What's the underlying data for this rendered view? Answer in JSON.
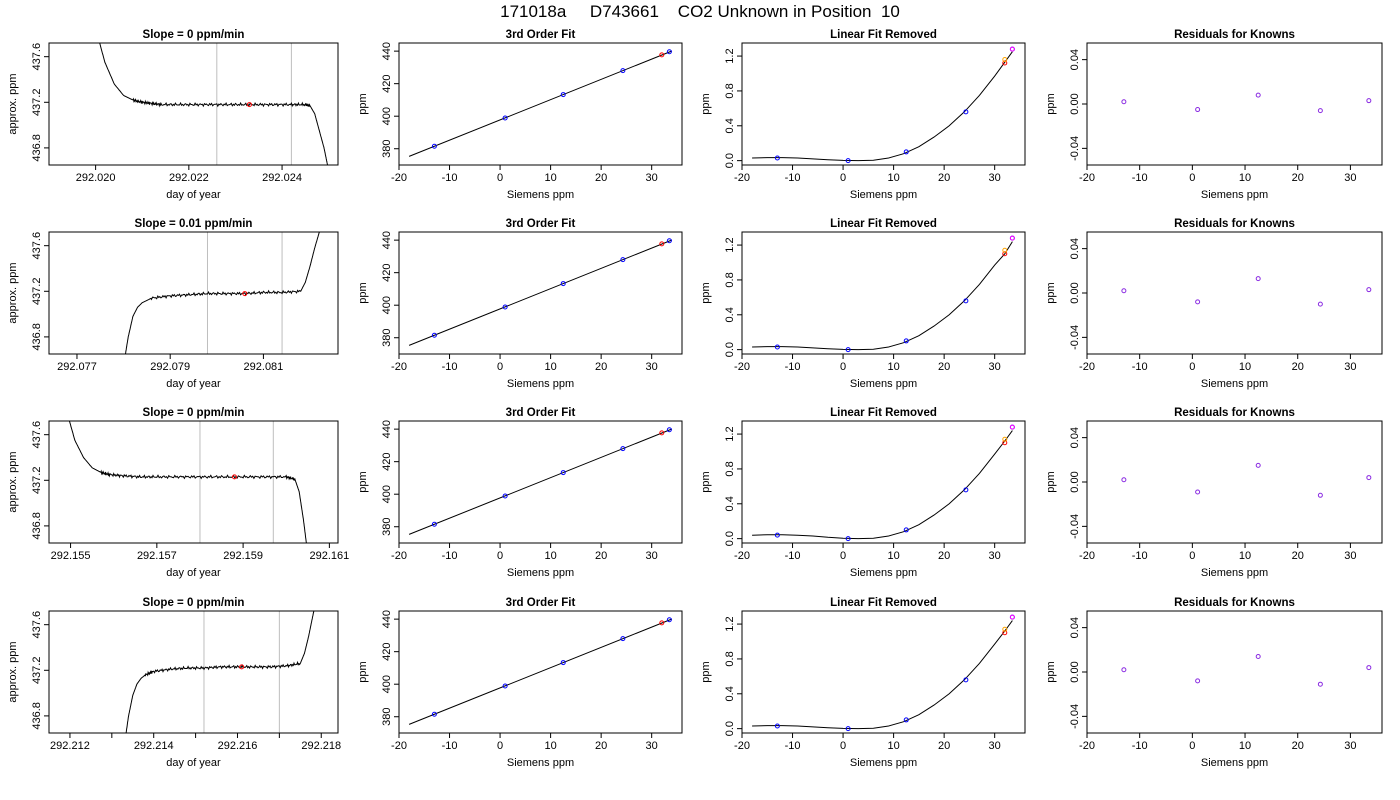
{
  "main_title": "171018a     D743661    CO2 Unknown in Position  10",
  "colors": {
    "axis": "#000000",
    "line": "#000000",
    "vline": "#bebebe",
    "known": "#0000ff",
    "residual": "#8a2be2",
    "unknown": "#ff0000",
    "unknown_alt": "#ffa500",
    "hollow": "#ff00ff"
  },
  "chart_data": [
    {
      "type": "line",
      "panel": "timeseries",
      "row": 1,
      "title": "Slope =  0  ppm/min",
      "xlabel": "day of year",
      "ylabel": "approx. ppm",
      "xlim": [
        292.019,
        292.0252
      ],
      "ylim": [
        436.65,
        437.72
      ],
      "xticks": [
        292.02,
        292.022,
        292.024
      ],
      "xtick_labels": [
        "292.020",
        "292.022",
        "292.024"
      ],
      "yticks": [
        436.8,
        437.2,
        437.6
      ],
      "ytick_labels": [
        "436.8",
        "437.2",
        "437.6"
      ],
      "vlines": [
        292.0226,
        292.0242
      ],
      "marker": {
        "x": 292.0233,
        "y": 437.18
      },
      "x": [
        292.02,
        292.0202,
        292.0204,
        292.0206,
        292.0208,
        292.021,
        292.0212,
        292.0214,
        292.0218,
        292.0222,
        292.0226,
        292.023,
        292.0234,
        292.0238,
        292.0242,
        292.0245,
        292.0246,
        292.0247,
        292.0248,
        292.0249,
        292.02495,
        292.025
      ],
      "y": [
        437.85,
        437.55,
        437.36,
        437.26,
        437.22,
        437.2,
        437.19,
        437.18,
        437.18,
        437.18,
        437.18,
        437.18,
        437.18,
        437.18,
        437.18,
        437.18,
        437.17,
        437.1,
        436.95,
        436.8,
        436.7,
        436.6
      ]
    },
    {
      "type": "scatter",
      "panel": "fit",
      "row": 1,
      "title": "3rd Order Fit",
      "xlabel": "Siemens ppm",
      "ylabel": "ppm",
      "xlim": [
        -20,
        36
      ],
      "ylim": [
        370,
        445
      ],
      "xticks": [
        -20,
        -10,
        0,
        10,
        20,
        30
      ],
      "yticks": [
        380,
        400,
        420,
        440
      ],
      "curve_x": [
        -18,
        34
      ],
      "curve_y": [
        375.3,
        440.1
      ],
      "known_x": [
        -13,
        1,
        12.5,
        24.3,
        33.5
      ],
      "known_y": [
        381.5,
        398.9,
        413.3,
        428.0,
        439.6
      ],
      "unknown": {
        "x": 32,
        "y": 437.7
      }
    },
    {
      "type": "scatter",
      "panel": "linear_removed",
      "row": 1,
      "title": "Linear Fit Removed",
      "xlabel": "Siemens ppm",
      "ylabel": "ppm",
      "xlim": [
        -20,
        36
      ],
      "ylim": [
        -0.05,
        1.35
      ],
      "xticks": [
        -20,
        -10,
        0,
        10,
        20,
        30
      ],
      "yticks": [
        0.0,
        0.4,
        0.8,
        1.2
      ],
      "ytick_labels": [
        "0.0",
        "0.4",
        "0.8",
        "1.2"
      ],
      "curve_x": [
        -18,
        -15,
        -12,
        -9,
        -6,
        -3,
        0,
        3,
        6,
        9,
        12,
        15,
        18,
        21,
        24,
        27,
        30,
        32,
        33.5
      ],
      "curve_y": [
        0.03,
        0.035,
        0.035,
        0.03,
        0.02,
        0.01,
        0.003,
        0.0,
        0.005,
        0.03,
        0.08,
        0.16,
        0.27,
        0.4,
        0.56,
        0.75,
        0.97,
        1.13,
        1.25
      ],
      "known_x": [
        -13,
        1,
        12.5,
        24.3,
        33.5
      ],
      "known_y": [
        0.03,
        0.0,
        0.1,
        0.56,
        1.28
      ],
      "unknown": {
        "x": 32,
        "y": 1.12
      }
    },
    {
      "type": "scatter",
      "panel": "residuals",
      "row": 1,
      "title": "Residuals for Knowns",
      "xlabel": "Siemens ppm",
      "ylabel": "ppm",
      "xlim": [
        -20,
        36
      ],
      "ylim": [
        -0.055,
        0.055
      ],
      "xticks": [
        -20,
        -10,
        0,
        10,
        20,
        30
      ],
      "yticks": [
        -0.04,
        0.0,
        0.04
      ],
      "ytick_labels": [
        "-0.04",
        "0.00",
        "0.04"
      ],
      "x": [
        -13,
        1,
        12.5,
        24.3,
        33.5
      ],
      "y": [
        0.002,
        -0.005,
        0.008,
        -0.006,
        0.003
      ]
    },
    {
      "type": "line",
      "panel": "timeseries",
      "row": 2,
      "title": "Slope =  0.01  ppm/min",
      "xlabel": "day of year",
      "ylabel": "approx. ppm",
      "xlim": [
        292.0764,
        292.0826
      ],
      "ylim": [
        436.65,
        437.72
      ],
      "xticks": [
        292.077,
        292.079,
        292.081
      ],
      "xtick_labels": [
        "292.077",
        "292.079",
        "292.081"
      ],
      "yticks": [
        436.8,
        437.2,
        437.6
      ],
      "ytick_labels": [
        "436.8",
        "437.2",
        "437.6"
      ],
      "vlines": [
        292.0798,
        292.0814
      ],
      "marker": {
        "x": 292.0806,
        "y": 437.18
      },
      "x": [
        292.078,
        292.0781,
        292.0782,
        292.0783,
        292.0784,
        292.0786,
        292.079,
        292.0794,
        292.0798,
        292.0802,
        292.0806,
        292.081,
        292.0814,
        292.0818,
        292.0819,
        292.082,
        292.0821,
        292.0822,
        292.0823
      ],
      "y": [
        436.55,
        436.8,
        436.98,
        437.06,
        437.1,
        437.14,
        437.16,
        437.17,
        437.18,
        437.18,
        437.18,
        437.19,
        437.19,
        437.2,
        437.28,
        437.42,
        437.58,
        437.72,
        437.8
      ]
    },
    {
      "type": "scatter",
      "panel": "fit",
      "row": 2,
      "title": "3rd Order Fit",
      "xlabel": "Siemens ppm",
      "ylabel": "ppm",
      "xlim": [
        -20,
        36
      ],
      "ylim": [
        370,
        445
      ],
      "xticks": [
        -20,
        -10,
        0,
        10,
        20,
        30
      ],
      "yticks": [
        380,
        400,
        420,
        440
      ],
      "curve_x": [
        -18,
        34
      ],
      "curve_y": [
        375.3,
        440.1
      ],
      "known_x": [
        -13,
        1,
        12.5,
        24.3,
        33.5
      ],
      "known_y": [
        381.5,
        398.9,
        413.3,
        428.0,
        439.6
      ],
      "unknown": {
        "x": 32,
        "y": 437.7
      }
    },
    {
      "type": "scatter",
      "panel": "linear_removed",
      "row": 2,
      "title": "Linear Fit Removed",
      "xlabel": "Siemens ppm",
      "ylabel": "ppm",
      "xlim": [
        -20,
        36
      ],
      "ylim": [
        -0.05,
        1.35
      ],
      "xticks": [
        -20,
        -10,
        0,
        10,
        20,
        30
      ],
      "yticks": [
        0.0,
        0.4,
        0.8,
        1.2
      ],
      "ytick_labels": [
        "0.0",
        "0.4",
        "0.8",
        "1.2"
      ],
      "curve_x": [
        -18,
        -15,
        -12,
        -9,
        -6,
        -3,
        0,
        3,
        6,
        9,
        12,
        15,
        18,
        21,
        24,
        27,
        30,
        32,
        33.5
      ],
      "curve_y": [
        0.03,
        0.035,
        0.035,
        0.03,
        0.02,
        0.01,
        0.003,
        0.0,
        0.005,
        0.03,
        0.08,
        0.16,
        0.27,
        0.4,
        0.56,
        0.75,
        0.97,
        1.1,
        1.24
      ],
      "known_x": [
        -13,
        1,
        12.5,
        24.3,
        33.5
      ],
      "known_y": [
        0.03,
        0.0,
        0.1,
        0.56,
        1.28
      ],
      "unknown": {
        "x": 32,
        "y": 1.1
      }
    },
    {
      "type": "scatter",
      "panel": "residuals",
      "row": 2,
      "title": "Residuals for Knowns",
      "xlabel": "Siemens ppm",
      "ylabel": "ppm",
      "xlim": [
        -20,
        36
      ],
      "ylim": [
        -0.055,
        0.055
      ],
      "xticks": [
        -20,
        -10,
        0,
        10,
        20,
        30
      ],
      "yticks": [
        -0.04,
        0.0,
        0.04
      ],
      "ytick_labels": [
        "-0.04",
        "0.00",
        "0.04"
      ],
      "x": [
        -13,
        1,
        12.5,
        24.3,
        33.5
      ],
      "y": [
        0.002,
        -0.008,
        0.013,
        -0.01,
        0.003
      ]
    },
    {
      "type": "line",
      "panel": "timeseries",
      "row": 3,
      "title": "Slope =  0  ppm/min",
      "xlabel": "day of year",
      "ylabel": "approx. ppm",
      "xlim": [
        292.1545,
        292.1612
      ],
      "ylim": [
        436.65,
        437.72
      ],
      "xticks": [
        292.155,
        292.157,
        292.159,
        292.161
      ],
      "xtick_labels": [
        "292.155",
        "292.157",
        "292.159",
        "292.161"
      ],
      "yticks": [
        436.8,
        437.2,
        437.6
      ],
      "ytick_labels": [
        "436.8",
        "437.2",
        "437.6"
      ],
      "vlines": [
        292.158,
        292.1597
      ],
      "marker": {
        "x": 292.1588,
        "y": 437.23
      },
      "x": [
        292.1549,
        292.1551,
        292.1553,
        292.1555,
        292.1557,
        292.1559,
        292.1562,
        292.1566,
        292.157,
        292.1575,
        292.158,
        292.1585,
        292.159,
        292.1595,
        292.16,
        292.1602,
        292.1603,
        292.1604,
        292.1605
      ],
      "y": [
        437.82,
        437.55,
        437.4,
        437.31,
        437.27,
        437.25,
        437.24,
        437.23,
        437.23,
        437.23,
        437.23,
        437.23,
        437.23,
        437.23,
        437.23,
        437.21,
        437.1,
        436.85,
        436.55
      ]
    },
    {
      "type": "scatter",
      "panel": "fit",
      "row": 3,
      "title": "3rd Order Fit",
      "xlabel": "Siemens ppm",
      "ylabel": "ppm",
      "xlim": [
        -20,
        36
      ],
      "ylim": [
        370,
        445
      ],
      "xticks": [
        -20,
        -10,
        0,
        10,
        20,
        30
      ],
      "yticks": [
        380,
        400,
        420,
        440
      ],
      "curve_x": [
        -18,
        34
      ],
      "curve_y": [
        375.3,
        440.1
      ],
      "known_x": [
        -13,
        1,
        12.5,
        24.3,
        33.5
      ],
      "known_y": [
        381.5,
        398.9,
        413.3,
        428.0,
        439.6
      ],
      "unknown": {
        "x": 32,
        "y": 437.7
      }
    },
    {
      "type": "scatter",
      "panel": "linear_removed",
      "row": 3,
      "title": "Linear Fit Removed",
      "xlabel": "Siemens ppm",
      "ylabel": "ppm",
      "xlim": [
        -20,
        36
      ],
      "ylim": [
        -0.05,
        1.35
      ],
      "xticks": [
        -20,
        -10,
        0,
        10,
        20,
        30
      ],
      "yticks": [
        0.0,
        0.4,
        0.8,
        1.2
      ],
      "ytick_labels": [
        "0.0",
        "0.4",
        "0.8",
        "1.2"
      ],
      "curve_x": [
        -18,
        -15,
        -12,
        -9,
        -6,
        -3,
        0,
        3,
        6,
        9,
        12,
        15,
        18,
        21,
        24,
        27,
        30,
        32,
        33.5
      ],
      "curve_y": [
        0.04,
        0.045,
        0.045,
        0.04,
        0.03,
        0.015,
        0.005,
        0.0,
        0.005,
        0.03,
        0.08,
        0.16,
        0.27,
        0.4,
        0.56,
        0.75,
        0.97,
        1.12,
        1.24
      ],
      "known_x": [
        -13,
        1,
        12.5,
        24.3,
        33.5
      ],
      "known_y": [
        0.04,
        0.0,
        0.1,
        0.56,
        1.28
      ],
      "unknown": {
        "x": 32,
        "y": 1.1
      }
    },
    {
      "type": "scatter",
      "panel": "residuals",
      "row": 3,
      "title": "Residuals for Knowns",
      "xlabel": "Siemens ppm",
      "ylabel": "ppm",
      "xlim": [
        -20,
        36
      ],
      "ylim": [
        -0.055,
        0.055
      ],
      "xticks": [
        -20,
        -10,
        0,
        10,
        20,
        30
      ],
      "yticks": [
        -0.04,
        0.0,
        0.04
      ],
      "ytick_labels": [
        "-0.04",
        "0.00",
        "0.04"
      ],
      "x": [
        -13,
        1,
        12.5,
        24.3,
        33.5
      ],
      "y": [
        0.002,
        -0.009,
        0.015,
        -0.012,
        0.004
      ]
    },
    {
      "type": "line",
      "panel": "timeseries",
      "row": 4,
      "title": "Slope =  0  ppm/min",
      "xlabel": "day of year",
      "ylabel": "approx. ppm",
      "xlim": [
        292.2115,
        292.2184
      ],
      "ylim": [
        436.65,
        437.72
      ],
      "xticks": [
        292.212,
        292.213,
        292.214,
        292.215,
        292.216,
        292.217,
        292.218
      ],
      "xtick_labels": [
        "292.212",
        "",
        "292.214",
        "",
        "292.216",
        "",
        "292.218"
      ],
      "yticks": [
        436.8,
        437.2,
        437.6
      ],
      "ytick_labels": [
        "436.8",
        "437.2",
        "437.6"
      ],
      "vlines": [
        292.2152,
        292.217
      ],
      "marker": {
        "x": 292.2161,
        "y": 437.23
      },
      "x": [
        292.2133,
        292.2134,
        292.2135,
        292.2136,
        292.2137,
        292.2138,
        292.214,
        292.2144,
        292.2148,
        292.2152,
        292.2156,
        292.216,
        292.2164,
        292.2168,
        292.2172,
        292.2175,
        292.2176,
        292.2177,
        292.2178,
        292.2179
      ],
      "y": [
        436.55,
        436.8,
        436.98,
        437.08,
        437.13,
        437.16,
        437.19,
        437.21,
        437.22,
        437.22,
        437.23,
        437.23,
        437.23,
        437.23,
        437.24,
        437.26,
        437.35,
        437.5,
        437.68,
        437.85
      ]
    },
    {
      "type": "scatter",
      "panel": "fit",
      "row": 4,
      "title": "3rd Order Fit",
      "xlabel": "Siemens ppm",
      "ylabel": "ppm",
      "xlim": [
        -20,
        36
      ],
      "ylim": [
        370,
        445
      ],
      "xticks": [
        -20,
        -10,
        0,
        10,
        20,
        30
      ],
      "yticks": [
        380,
        400,
        420,
        440
      ],
      "curve_x": [
        -18,
        34
      ],
      "curve_y": [
        375.3,
        440.1
      ],
      "known_x": [
        -13,
        1,
        12.5,
        24.3,
        33.5
      ],
      "known_y": [
        381.5,
        398.9,
        413.3,
        428.0,
        439.6
      ],
      "unknown": {
        "x": 32,
        "y": 437.7
      }
    },
    {
      "type": "scatter",
      "panel": "linear_removed",
      "row": 4,
      "title": "Linear Fit Removed",
      "xlabel": "Siemens ppm",
      "ylabel": "ppm",
      "xlim": [
        -20,
        36
      ],
      "ylim": [
        -0.05,
        1.35
      ],
      "xticks": [
        -20,
        -10,
        0,
        10,
        20,
        30
      ],
      "yticks": [
        0.0,
        0.4,
        0.8,
        1.2
      ],
      "ytick_labels": [
        "0.0",
        "0.4",
        "0.8",
        "1.2"
      ],
      "curve_x": [
        -18,
        -15,
        -12,
        -9,
        -6,
        -3,
        0,
        3,
        6,
        9,
        12,
        15,
        18,
        21,
        24,
        27,
        30,
        32,
        33.5
      ],
      "curve_y": [
        0.03,
        0.035,
        0.035,
        0.03,
        0.02,
        0.01,
        0.003,
        0.0,
        0.005,
        0.03,
        0.08,
        0.16,
        0.27,
        0.4,
        0.56,
        0.75,
        0.97,
        1.12,
        1.24
      ],
      "known_x": [
        -13,
        1,
        12.5,
        24.3,
        33.5
      ],
      "known_y": [
        0.03,
        0.0,
        0.1,
        0.56,
        1.28
      ],
      "unknown": {
        "x": 32,
        "y": 1.1
      }
    },
    {
      "type": "scatter",
      "panel": "residuals",
      "row": 4,
      "title": "Residuals for Knowns",
      "xlabel": "Siemens ppm",
      "ylabel": "ppm",
      "xlim": [
        -20,
        36
      ],
      "ylim": [
        -0.055,
        0.055
      ],
      "xticks": [
        -20,
        -10,
        0,
        10,
        20,
        30
      ],
      "yticks": [
        -0.04,
        0.0,
        0.04
      ],
      "ytick_labels": [
        "-0.04",
        "0.00",
        "0.04"
      ],
      "x": [
        -13,
        1,
        12.5,
        24.3,
        33.5
      ],
      "y": [
        0.002,
        -0.008,
        0.014,
        -0.011,
        0.004
      ]
    }
  ]
}
